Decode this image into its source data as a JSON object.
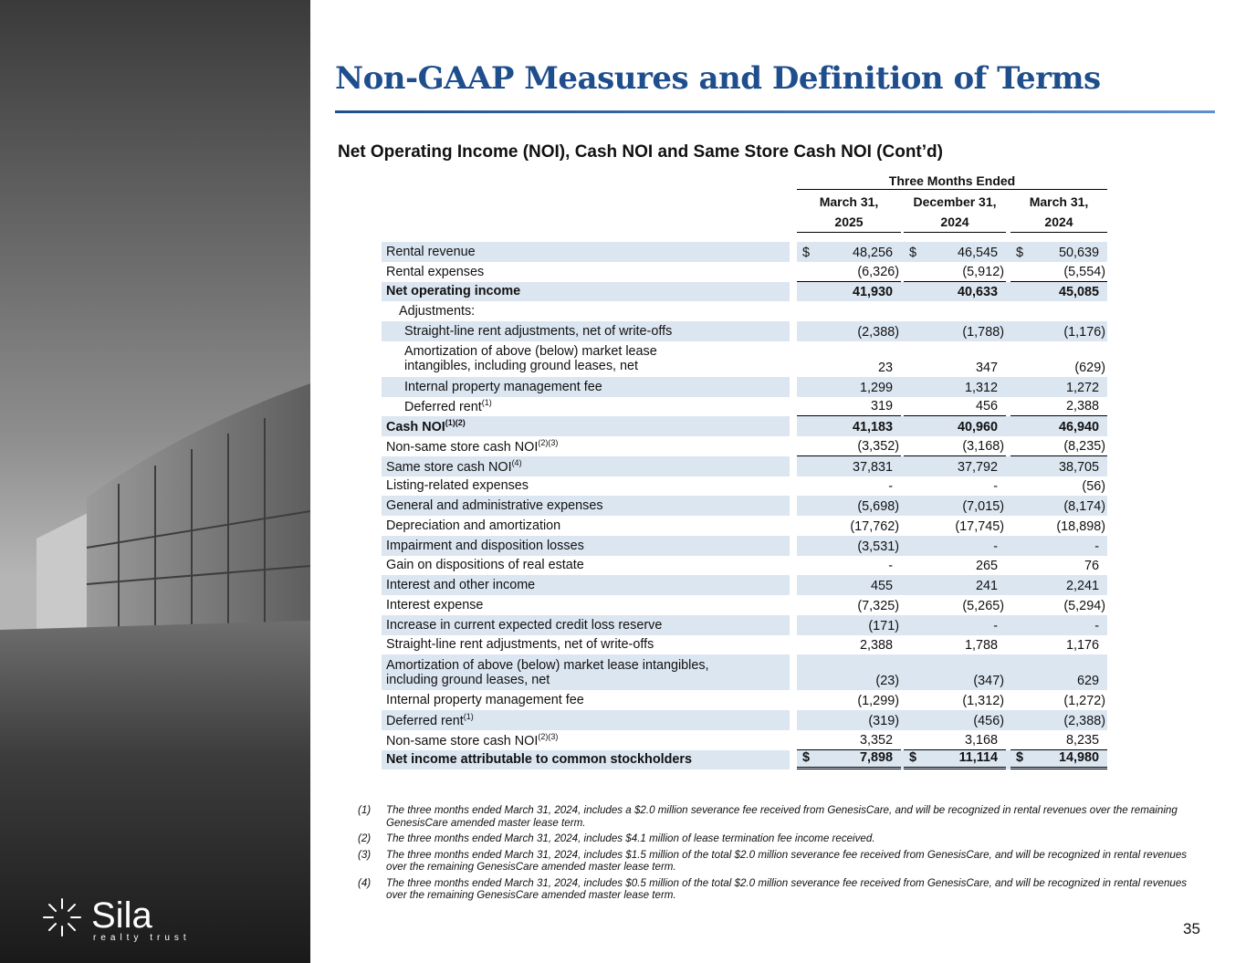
{
  "header": {
    "title": "Non-GAAP Measures and Definition of Terms",
    "subtitle": "Net Operating Income (NOI), Cash NOI and Same Store Cash NOI (Cont’d)"
  },
  "logo": {
    "name": "Sila",
    "tagline": "realty trust"
  },
  "table": {
    "period_header": "Three Months Ended",
    "columns": [
      {
        "month": "March 31,",
        "year": "2025"
      },
      {
        "month": "December 31,",
        "year": "2024"
      },
      {
        "month": "March 31,",
        "year": "2024"
      }
    ],
    "rows": [
      {
        "label": "Rental revenue",
        "currency": "$",
        "values": [
          "48,256",
          "46,545",
          "50,639"
        ]
      },
      {
        "label": "Rental expenses",
        "values": [
          "(6,326)",
          "(5,912)",
          "(5,554)"
        ]
      },
      {
        "label": "Net operating income",
        "values": [
          "41,930",
          "40,633",
          "45,085"
        ]
      },
      {
        "label": "Adjustments:"
      },
      {
        "label": "Straight-line rent adjustments, net of write-offs",
        "values": [
          "(2,388)",
          "(1,788)",
          "(1,176)"
        ]
      },
      {
        "label": [
          "Amortization of above (below) market lease",
          "intangibles, including ground leases, net"
        ],
        "values": [
          "23",
          "347",
          "(629)"
        ]
      },
      {
        "label": "Internal property management fee",
        "values": [
          "1,299",
          "1,312",
          "1,272"
        ]
      },
      {
        "label": "Deferred rent",
        "note": "(1)",
        "values": [
          "319",
          "456",
          "2,388"
        ]
      },
      {
        "label": "Cash NOI",
        "note": "(1)(2)",
        "values": [
          "41,183",
          "40,960",
          "46,940"
        ]
      },
      {
        "label": "Non-same store cash NOI",
        "note": "(2)(3)",
        "values": [
          "(3,352)",
          "(3,168)",
          "(8,235)"
        ]
      },
      {
        "label": "Same store cash NOI",
        "note": "(4)",
        "values": [
          "37,831",
          "37,792",
          "38,705"
        ]
      },
      {
        "label": "Listing-related expenses",
        "values": [
          "-",
          "-",
          "(56)"
        ]
      },
      {
        "label": "General and administrative expenses",
        "values": [
          "(5,698)",
          "(7,015)",
          "(8,174)"
        ]
      },
      {
        "label": "Depreciation and amortization",
        "values": [
          "(17,762)",
          "(17,745)",
          "(18,898)"
        ]
      },
      {
        "label": "Impairment and disposition losses",
        "values": [
          "(3,531)",
          "-",
          "-"
        ]
      },
      {
        "label": "Gain on dispositions of real estate",
        "values": [
          "-",
          "265",
          "76"
        ]
      },
      {
        "label": "Interest and other income",
        "values": [
          "455",
          "241",
          "2,241"
        ]
      },
      {
        "label": "Interest expense",
        "values": [
          "(7,325)",
          "(5,265)",
          "(5,294)"
        ]
      },
      {
        "label": "Increase in current expected credit loss reserve",
        "values": [
          "(171)",
          "-",
          "-"
        ]
      },
      {
        "label": "Straight-line rent adjustments, net of write-offs",
        "values": [
          "2,388",
          "1,788",
          "1,176"
        ]
      },
      {
        "label": [
          "Amortization of above (below) market lease intangibles,",
          "including ground leases, net"
        ],
        "values": [
          "(23)",
          "(347)",
          "629"
        ]
      },
      {
        "label": "Internal property management fee",
        "values": [
          "(1,299)",
          "(1,312)",
          "(1,272)"
        ]
      },
      {
        "label": "Deferred rent",
        "note": "(1)",
        "values": [
          "(319)",
          "(456)",
          "(2,388)"
        ]
      },
      {
        "label": "Non-same store cash NOI",
        "note": "(2)(3)",
        "values": [
          "3,352",
          "3,168",
          "8,235"
        ]
      },
      {
        "label": "Net income attributable to common stockholders",
        "currency": "$",
        "values": [
          "7,898",
          "11,114",
          "14,980"
        ]
      }
    ]
  },
  "footnotes": [
    {
      "marker": "(1)",
      "text": "The three months ended March 31, 2024, includes a $2.0 million severance fee received from GenesisCare, and will be recognized in rental revenues over the remaining GenesisCare amended master lease term."
    },
    {
      "marker": "(2)",
      "text": "The three months ended March 31, 2024, includes $4.1 million of lease termination fee income received."
    },
    {
      "marker": "(3)",
      "text": "The three months ended March 31, 2024, includes $1.5 million of the total $2.0 million severance fee received from GenesisCare, and will be recognized in rental revenues over the remaining GenesisCare amended master lease term."
    },
    {
      "marker": "(4)",
      "text": "The three months ended March 31, 2024, includes $0.5 million of the total $2.0 million severance fee received from GenesisCare, and will be recognized in rental revenues over the remaining GenesisCare amended master lease term."
    }
  ],
  "page_number": "35"
}
